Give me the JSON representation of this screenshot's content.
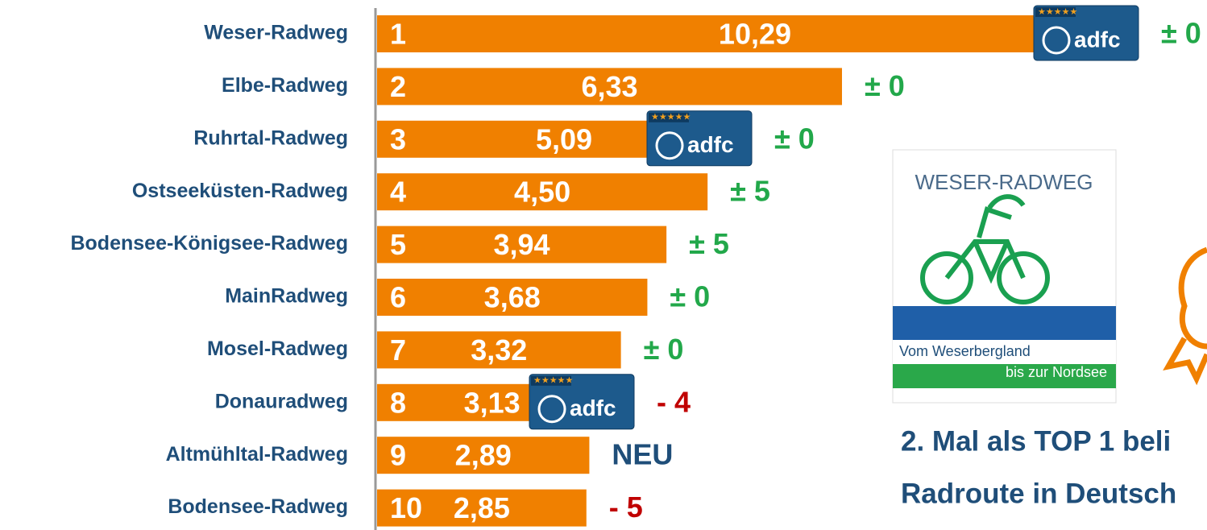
{
  "chart_data": {
    "type": "barh",
    "categories": [
      "Weser-Radweg",
      "Elbe-Radweg",
      "Ruhrtal-Radweg",
      "Ostseeküsten-Radweg",
      "Bodensee-Königsee-Radweg",
      "MainRadweg",
      "Mosel-Radweg",
      "Donauradweg",
      "Altmühltal-Radweg",
      "Bodensee-Radweg"
    ],
    "ranks": [
      "1",
      "2",
      "3",
      "4",
      "5",
      "6",
      "7",
      "8",
      "9",
      "10"
    ],
    "values": [
      10.29,
      6.33,
      5.09,
      4.5,
      3.94,
      3.68,
      3.32,
      3.13,
      2.89,
      2.85
    ],
    "value_labels": [
      "10,29",
      "6,33",
      "5,09",
      "4,50",
      "3,94",
      "3,68",
      "3,32",
      "3,13",
      "2,89",
      "2,85"
    ],
    "changes": [
      "± 0",
      "± 0",
      "± 0",
      "± 5",
      "± 5",
      "± 0",
      "± 0",
      "- 4",
      "NEU",
      "- 5"
    ],
    "change_colors": [
      "#22a84a",
      "#22a84a",
      "#22a84a",
      "#22a84a",
      "#22a84a",
      "#22a84a",
      "#22a84a",
      "#c00000",
      "#1f4e79",
      "#c00000"
    ],
    "adfc_badge": [
      true,
      false,
      true,
      false,
      false,
      false,
      false,
      true,
      false,
      false
    ],
    "badge_label": "adfc",
    "color": "#f08000",
    "xlim": [
      0,
      11.3
    ],
    "logo": {
      "title": "WESER-RADWEG",
      "line1": "Vom Weserbergland",
      "line2": "bis zur Nordsee"
    },
    "caption": [
      "2. Mal als TOP 1 beli",
      "Radroute in Deutsch"
    ]
  }
}
